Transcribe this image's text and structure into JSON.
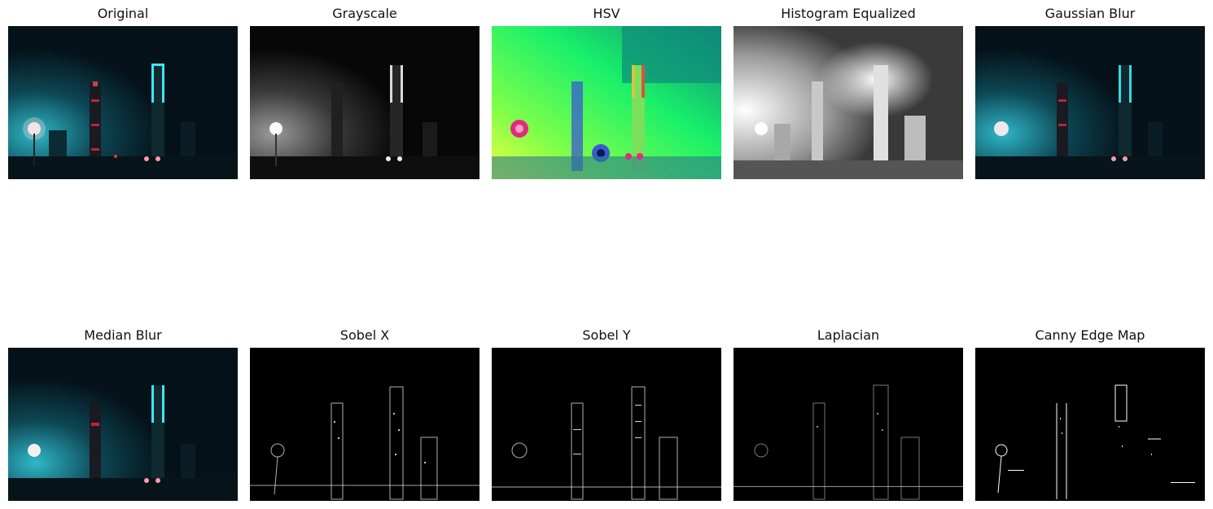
{
  "figure": {
    "panels": [
      {
        "id": "original",
        "title": "Original"
      },
      {
        "id": "grayscale",
        "title": "Grayscale"
      },
      {
        "id": "hsv",
        "title": "HSV"
      },
      {
        "id": "hist-eq",
        "title": "Histogram Equalized"
      },
      {
        "id": "gaussian",
        "title": "Gaussian Blur"
      },
      {
        "id": "median",
        "title": "Median Blur"
      },
      {
        "id": "sobel-x",
        "title": "Sobel X"
      },
      {
        "id": "sobel-y",
        "title": "Sobel Y"
      },
      {
        "id": "laplacian",
        "title": "Laplacian"
      },
      {
        "id": "canny",
        "title": "Canny Edge Map"
      }
    ]
  }
}
